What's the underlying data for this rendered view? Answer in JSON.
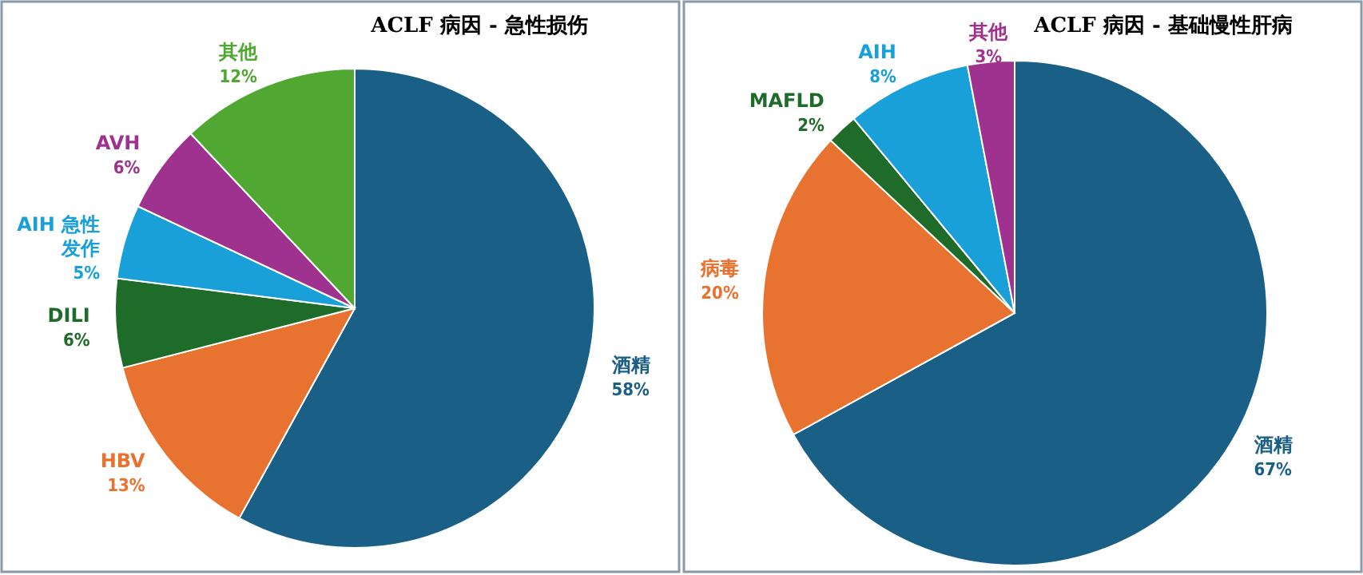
{
  "chart_data": [
    {
      "type": "pie",
      "title": "ACLF 病因 - 急性损伤",
      "categories": [
        "酒精",
        "HBV",
        "DILI",
        "AIH 急性发作",
        "AVH",
        "其他"
      ],
      "values": [
        58,
        13,
        6,
        5,
        6,
        12
      ],
      "value_labels": [
        "58%",
        "13%",
        "6%",
        "5%",
        "6%",
        "12%"
      ],
      "colors": [
        "#1a5f86",
        "#e8722f",
        "#1e6b2a",
        "#1aa0d8",
        "#a0328f",
        "#50a832"
      ]
    },
    {
      "type": "pie",
      "title": "ACLF 病因 - 基础慢性肝病",
      "categories": [
        "酒精",
        "病毒",
        "MAFLD",
        "AIH",
        "其他"
      ],
      "values": [
        67,
        20,
        2,
        8,
        3
      ],
      "value_labels": [
        "67%",
        "20%",
        "2%",
        "8%",
        "3%"
      ],
      "colors": [
        "#1a5f86",
        "#e8722f",
        "#1e6b2a",
        "#1aa0d8",
        "#a0328f"
      ]
    }
  ]
}
